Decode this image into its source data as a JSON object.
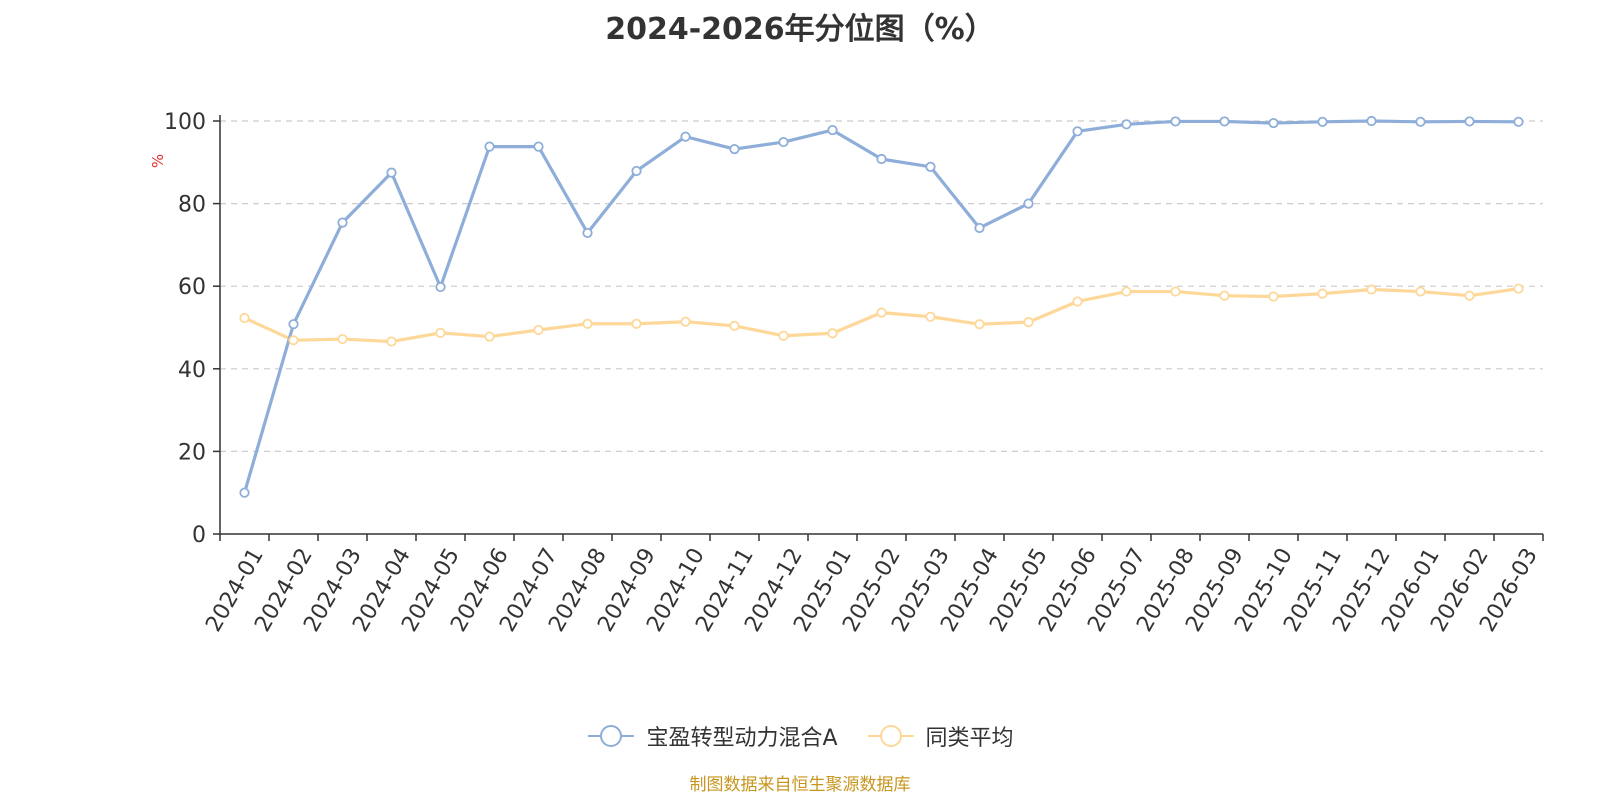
{
  "chart_data": {
    "type": "line",
    "title": "2024-2026年分位图（%）",
    "ylabel": "%",
    "ylim": [
      0,
      100
    ],
    "yticks": [
      0,
      20,
      40,
      60,
      80,
      100
    ],
    "grid": true,
    "legend_position": "bottom",
    "categories": [
      "2024-01",
      "2024-02",
      "2024-03",
      "2024-04",
      "2024-05",
      "2024-06",
      "2024-07",
      "2024-08",
      "2024-09",
      "2024-10",
      "2024-11",
      "2024-12",
      "2025-01",
      "2025-02",
      "2025-03",
      "2025-04",
      "2025-05",
      "2025-06",
      "2025-07",
      "2025-08",
      "2025-09",
      "2025-10",
      "2025-11",
      "2025-12",
      "2026-01",
      "2026-02",
      "2026-03"
    ],
    "series": [
      {
        "name": "宝盈转型动力混合A",
        "color": "#8eaed9",
        "values": [
          10.0,
          50.8,
          75.4,
          87.5,
          59.8,
          93.8,
          93.8,
          72.9,
          87.9,
          96.2,
          93.2,
          94.9,
          97.8,
          90.8,
          88.9,
          74.1,
          80.0,
          97.5,
          99.2,
          99.9,
          99.9,
          99.5,
          99.8,
          100.0,
          99.8,
          99.9,
          99.8
        ]
      },
      {
        "name": "同类平均",
        "color": "#fdd899",
        "values": [
          52.3,
          46.9,
          47.2,
          46.6,
          48.7,
          47.8,
          49.4,
          50.9,
          50.9,
          51.4,
          50.4,
          48.0,
          48.6,
          53.6,
          52.6,
          50.8,
          51.3,
          56.3,
          58.7,
          58.7,
          57.7,
          57.5,
          58.2,
          59.2,
          58.7,
          57.7,
          59.4
        ]
      }
    ]
  },
  "source": "制图数据来自恒生聚源数据库"
}
